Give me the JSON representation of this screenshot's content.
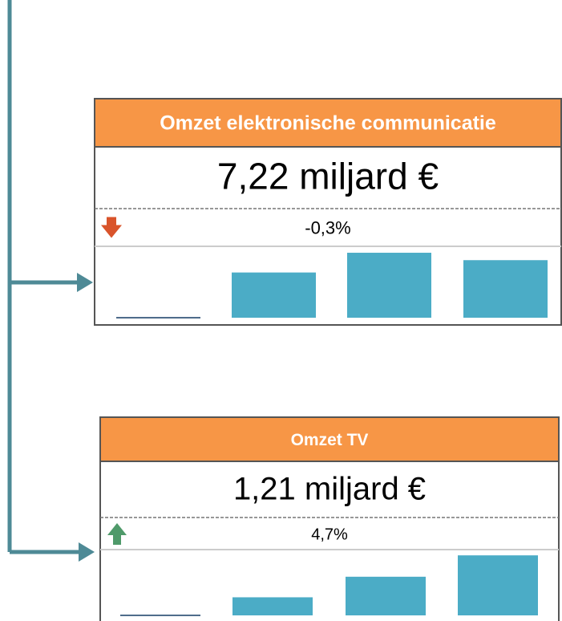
{
  "cards": [
    {
      "title": "Omzet elektronische communicatie",
      "value": "7,22 miljard €",
      "change": "-0,3%",
      "trend": "down",
      "bars": {
        "values": [
          1,
          55,
          79,
          70
        ],
        "colors": [
          "#4d6b8a",
          "#4bacc6",
          "#4bacc6",
          "#4bacc6"
        ],
        "ylim": [
          0,
          80
        ]
      }
    },
    {
      "title": "Omzet TV",
      "value": "1,21 miljard €",
      "change": "4,7%",
      "trend": "up",
      "bars": {
        "values": [
          1,
          22,
          47,
          73
        ],
        "colors": [
          "#4d6b8a",
          "#4bacc6",
          "#4bacc6",
          "#4bacc6"
        ],
        "ylim": [
          0,
          80
        ]
      }
    }
  ]
}
